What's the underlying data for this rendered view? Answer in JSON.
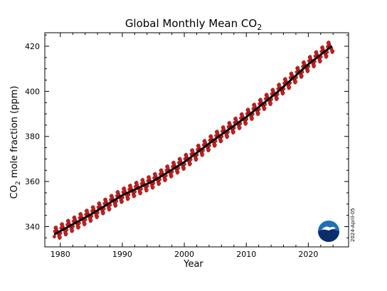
{
  "chart_data": {
    "type": "line",
    "title": "Global Monthly Mean CO",
    "title_subscript": "2",
    "xlabel": "Year",
    "ylabel_prefix": "CO",
    "ylabel_subscript": "2",
    "ylabel_suffix": " mole fraction (ppm)",
    "xlim": [
      1977.5,
      2026.5
    ],
    "ylim": [
      331,
      426
    ],
    "xticks": [
      1980,
      1990,
      2000,
      2010,
      2020
    ],
    "yticks": [
      340,
      360,
      380,
      400,
      420
    ],
    "grid": false,
    "date_stamp": "2024-April-05",
    "series": [
      {
        "style": "monthly-points",
        "color": "#cc2222",
        "description_source": "monthly means, seasonal cycle",
        "start_year": 1979.04,
        "end_year": 2024.0,
        "seasonal_amplitude_ppm": 2.4
      },
      {
        "style": "trend-line",
        "color": "#000000",
        "x": [
          1979,
          1985,
          1990,
          1995,
          2000,
          2005,
          2010,
          2015,
          2020,
          2024
        ],
        "y": [
          336.5,
          345.5,
          353.9,
          360.2,
          368.6,
          378.9,
          388.6,
          399.6,
          412.0,
          420.5
        ]
      }
    ],
    "logo": {
      "name": "noaa-logo",
      "colors": {
        "outer": "#1f6fb5",
        "inner": "#0a2d6e",
        "bird": "#ffffff"
      }
    }
  }
}
